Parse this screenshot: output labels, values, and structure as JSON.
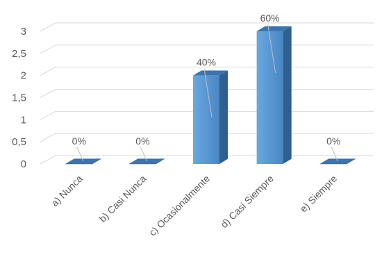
{
  "chart_data": {
    "type": "bar",
    "style": "3d-column",
    "categories": [
      "a) Nunca",
      "b) Casi Nunca",
      "c) Ocasionalmente",
      "d) Casi Siempre",
      "e) Siempre"
    ],
    "values": [
      0,
      0,
      2,
      3,
      0
    ],
    "data_labels": [
      "0%",
      "0%",
      "40%",
      "60%",
      "0%"
    ],
    "ylim": [
      0,
      3
    ],
    "yticks": [
      "0",
      "0,5",
      "1",
      "1,5",
      "2",
      "2,5",
      "3"
    ],
    "grid": true,
    "legend": "none",
    "colors": {
      "bar_front": "#5B9BD5",
      "bar_side": "#2E5F8F",
      "bar_top": "#3F74AB",
      "grid": "#D9D9D9",
      "text": "#595959",
      "leader": "#BFBFBF"
    }
  }
}
